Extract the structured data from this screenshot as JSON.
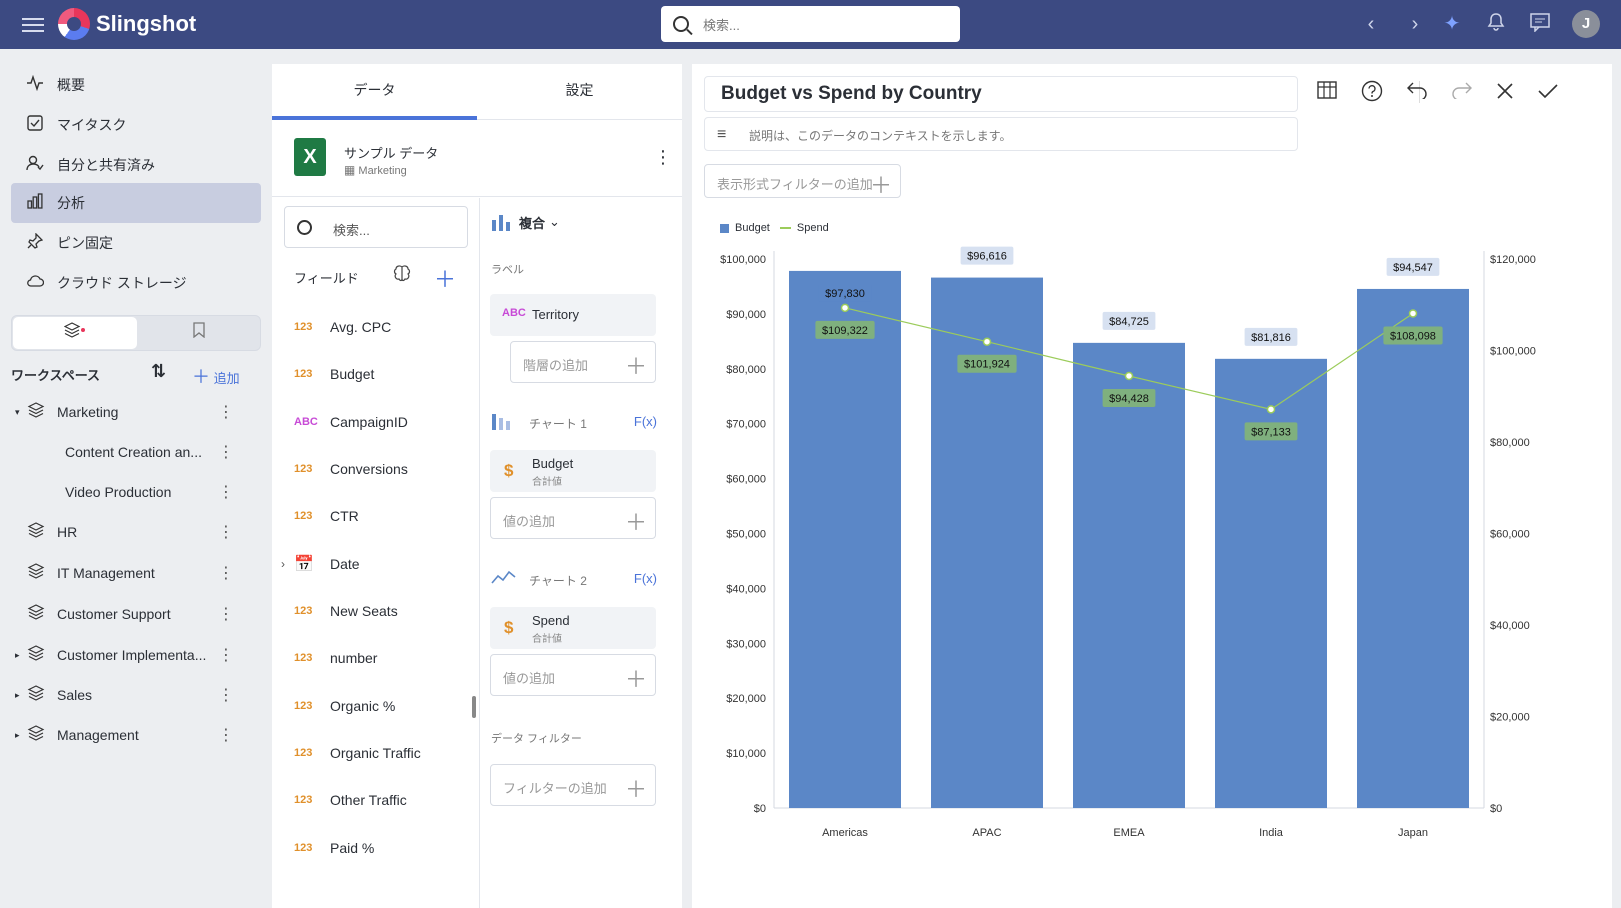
{
  "topbar": {
    "app_name": "Slingshot",
    "search_placeholder": "検索...",
    "avatar_initial": "J"
  },
  "sidebar": {
    "nav": [
      {
        "label": "概要",
        "icon": "activity-icon"
      },
      {
        "label": "マイタスク",
        "icon": "task-icon"
      },
      {
        "label": "自分と共有済み",
        "icon": "shared-user-icon"
      },
      {
        "label": "分析",
        "icon": "analytics-icon",
        "active": true
      },
      {
        "label": "ピン固定",
        "icon": "pin-icon"
      },
      {
        "label": "クラウド ストレージ",
        "icon": "cloud-icon"
      }
    ],
    "workspaces_title": "ワークスペース",
    "add_label": "追加",
    "workspaces": [
      {
        "label": "Marketing",
        "expanded": true
      },
      {
        "label": "Content Creation an...",
        "sub": true
      },
      {
        "label": "Video Production",
        "sub": true
      },
      {
        "label": "HR"
      },
      {
        "label": "IT Management"
      },
      {
        "label": "Customer Support"
      },
      {
        "label": "Customer Implementa...",
        "collapsed": true
      },
      {
        "label": "Sales",
        "collapsed": true
      },
      {
        "label": "Management",
        "collapsed": true
      }
    ]
  },
  "data_panel": {
    "tab_data": "データ",
    "tab_settings": "設定",
    "datasource_name": "サンプル データ",
    "datasource_sheet": "Marketing",
    "field_search_placeholder": "検索...",
    "fields_title": "フィールド",
    "fields": [
      {
        "type": "123",
        "name": "Avg. CPC"
      },
      {
        "type": "123",
        "name": "Budget"
      },
      {
        "type": "ABC",
        "name": "CampaignID"
      },
      {
        "type": "123",
        "name": "Conversions"
      },
      {
        "type": "123",
        "name": "CTR"
      },
      {
        "type": "date",
        "name": "Date"
      },
      {
        "type": "123",
        "name": "New Seats"
      },
      {
        "type": "123",
        "name": "number"
      },
      {
        "type": "123",
        "name": "Organic %"
      },
      {
        "type": "123",
        "name": "Organic Traffic"
      },
      {
        "type": "123",
        "name": "Other Traffic"
      },
      {
        "type": "123",
        "name": "Paid %"
      }
    ],
    "viz_type": "複合",
    "label_section": "ラベル",
    "label_field_type": "ABC",
    "label_field": "Territory",
    "add_hierarchy": "階層の追加",
    "chart1_label": "チャート 1",
    "chart1_value": "Budget",
    "chart1_agg": "合計値",
    "add_value": "値の追加",
    "chart2_label": "チャート 2",
    "chart2_value": "Spend",
    "chart2_agg": "合計値",
    "fx_label": "F(x)",
    "data_filter_section": "データ フィルター",
    "add_filter": "フィルターの追加"
  },
  "chart_panel": {
    "title": "Budget vs Spend by Country",
    "description_placeholder": "説明は、このデータのコンテキストを示します。",
    "add_view_filter": "表示形式フィルターの追加"
  },
  "colors": {
    "topbar": "#3c4a82",
    "bar": "#5b87c7",
    "line": "#9ccc5b",
    "accent": "#4a73d9"
  },
  "chart_data": {
    "type": "bar",
    "combo": "bar + line (secondary axis)",
    "categories": [
      "Americas",
      "APAC",
      "EMEA",
      "India",
      "Japan"
    ],
    "series": [
      {
        "name": "Budget",
        "type": "bar",
        "axis": "left",
        "values": [
          97830,
          96616,
          84725,
          81816,
          94547
        ],
        "labels": [
          "$97,830",
          "$96,616",
          "$84,725",
          "$81,816",
          "$94,547"
        ]
      },
      {
        "name": "Spend",
        "type": "line",
        "axis": "right",
        "values": [
          109322,
          101924,
          94428,
          87133,
          108098
        ],
        "labels": [
          "$109,322",
          "$101,924",
          "$94,428",
          "$87,133",
          "$108,098"
        ]
      }
    ],
    "ylim_left": [
      0,
      100000
    ],
    "ylim_right": [
      0,
      120000
    ],
    "left_ticks": [
      "$0",
      "$10,000",
      "$20,000",
      "$30,000",
      "$40,000",
      "$50,000",
      "$60,000",
      "$70,000",
      "$80,000",
      "$90,000",
      "$100,000"
    ],
    "right_ticks": [
      "$0",
      "$20,000",
      "$40,000",
      "$60,000",
      "$80,000",
      "$100,000",
      "$120,000"
    ],
    "legend_position": "top-left",
    "grid": false
  }
}
